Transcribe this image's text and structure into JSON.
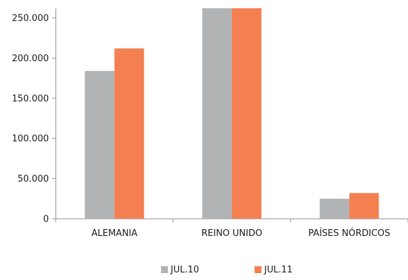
{
  "chart_data": {
    "type": "bar",
    "title": "",
    "xlabel": "",
    "ylabel": "",
    "categories": [
      "ALEMANIA",
      "REINO UNIDO",
      "PAÍSES NÓRDICOS"
    ],
    "series": [
      {
        "name": "JUL.10",
        "color": "#b2b3b4",
        "values": [
          184000,
          262000,
          25000
        ]
      },
      {
        "name": "JUL.11",
        "color": "#f48052",
        "values": [
          212000,
          262000,
          32000
        ]
      }
    ],
    "ylim": [
      0,
      262000
    ],
    "yticks": [
      0,
      50000,
      100000,
      150000,
      200000,
      250000
    ],
    "ytick_labels": [
      "0",
      "50.000",
      "100.000",
      "150.000",
      "200.000",
      "250.000"
    ],
    "legend_position": "bottom",
    "grid": false
  }
}
